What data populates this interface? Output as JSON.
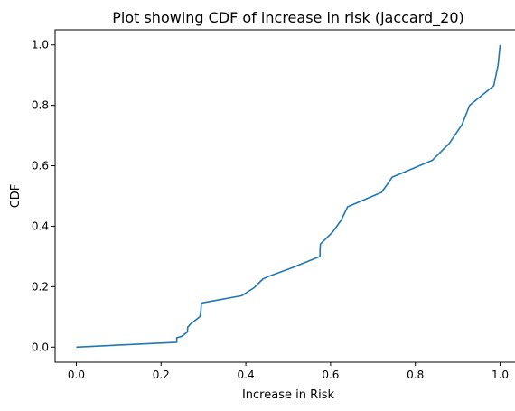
{
  "chart_data": {
    "type": "line",
    "title": "Plot showing CDF of increase in risk (jaccard_20)",
    "xlabel": "Increase in Risk",
    "ylabel": "CDF",
    "xlim": [
      -0.05,
      1.05
    ],
    "ylim": [
      -0.05,
      1.05
    ],
    "xticks": [
      0.0,
      0.2,
      0.4,
      0.6,
      0.8,
      1.0
    ],
    "xtick_labels": [
      "0.0",
      "0.2",
      "0.4",
      "0.6",
      "0.8",
      "1.0"
    ],
    "yticks": [
      0.0,
      0.2,
      0.4,
      0.6,
      0.8,
      1.0
    ],
    "ytick_labels": [
      "0.0",
      "0.2",
      "0.4",
      "0.6",
      "0.8",
      "1.0"
    ],
    "grid": false,
    "line_color": "#1f77b4",
    "series": [
      {
        "x": [
          0.0,
          0.237,
          0.237,
          0.248,
          0.26,
          0.262,
          0.263,
          0.27,
          0.292,
          0.294,
          0.295,
          0.39,
          0.42,
          0.44,
          0.45,
          0.51,
          0.575,
          0.575,
          0.576,
          0.59,
          0.605,
          0.625,
          0.64,
          0.72,
          0.733,
          0.745,
          0.84,
          0.88,
          0.91,
          0.928,
          0.985,
          0.995,
          1.0
        ],
        "y": [
          0.0,
          0.016,
          0.031,
          0.035,
          0.048,
          0.05,
          0.066,
          0.077,
          0.101,
          0.12,
          0.146,
          0.17,
          0.197,
          0.225,
          0.232,
          0.263,
          0.3,
          0.32,
          0.341,
          0.36,
          0.381,
          0.42,
          0.464,
          0.512,
          0.537,
          0.562,
          0.618,
          0.674,
          0.736,
          0.8,
          0.865,
          0.932,
          1.0
        ]
      }
    ]
  }
}
